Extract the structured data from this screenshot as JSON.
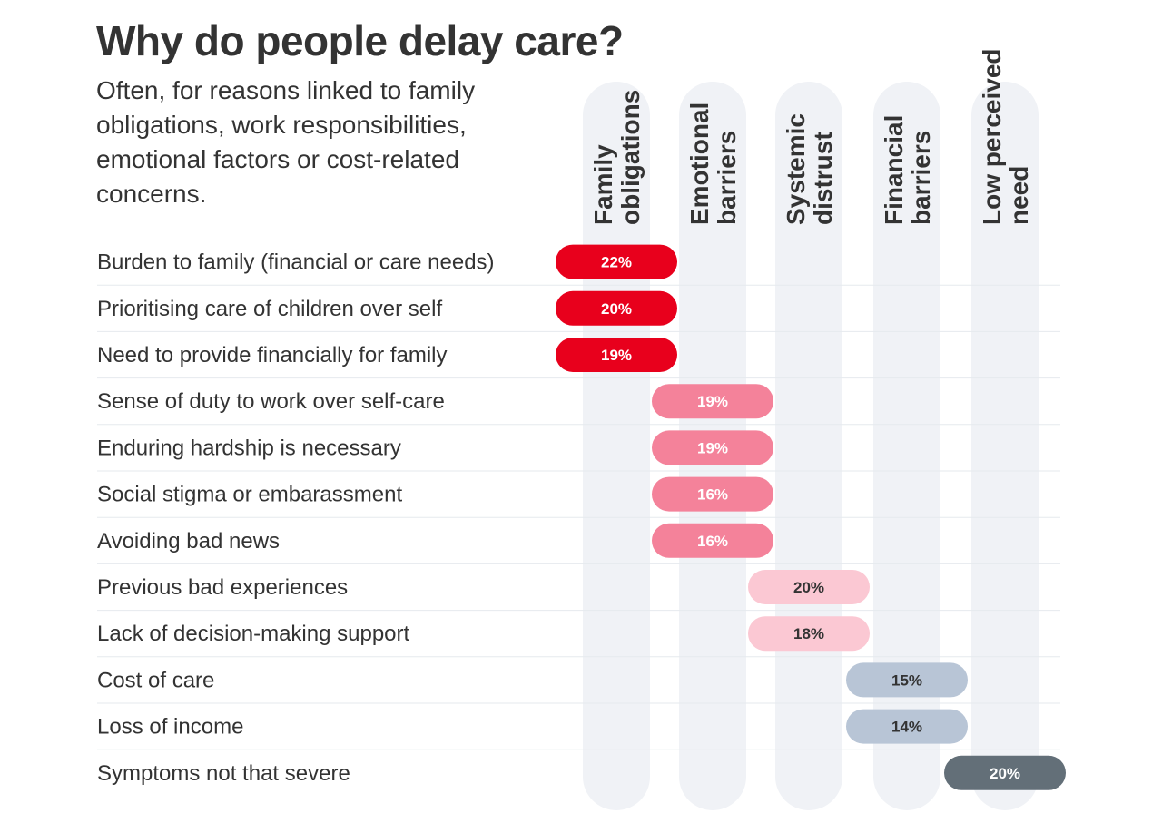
{
  "title": "Why do people delay care?",
  "subtitle": "Often, for reasons linked to family obligations, work responsibilities, emotional factors or cost-related concerns.",
  "chart_data": {
    "type": "table",
    "title": "Why do people delay care?",
    "columns": [
      {
        "lines": [
          "Family",
          "obligations"
        ],
        "color": "#e8001c",
        "text_color": "#ffffff"
      },
      {
        "lines": [
          "Emotional",
          "barriers"
        ],
        "color": "#f4829a",
        "text_color": "#ffffff"
      },
      {
        "lines": [
          "Systemic",
          "distrust"
        ],
        "color": "#fbc8d3",
        "text_color": "#333333"
      },
      {
        "lines": [
          "Financial",
          "barriers"
        ],
        "color": "#b8c5d6",
        "text_color": "#333333"
      },
      {
        "lines": [
          "Low perceived",
          "need"
        ],
        "color": "#636f78",
        "text_color": "#ffffff"
      }
    ],
    "rows": [
      {
        "label": "Burden to family (financial or care needs)",
        "category": 0,
        "value": 22,
        "value_label": "22%"
      },
      {
        "label": "Prioritising care of children over self",
        "category": 0,
        "value": 20,
        "value_label": "20%"
      },
      {
        "label": "Need to provide financially for family",
        "category": 0,
        "value": 19,
        "value_label": "19%"
      },
      {
        "label": "Sense of duty to work over self-care",
        "category": 1,
        "value": 19,
        "value_label": "19%"
      },
      {
        "label": "Enduring hardship is necessary",
        "category": 1,
        "value": 19,
        "value_label": "19%"
      },
      {
        "label": "Social stigma or embarassment",
        "category": 1,
        "value": 16,
        "value_label": "16%"
      },
      {
        "label": "Avoiding bad news",
        "category": 1,
        "value": 16,
        "value_label": "16%"
      },
      {
        "label": "Previous bad experiences",
        "category": 2,
        "value": 20,
        "value_label": "20%"
      },
      {
        "label": "Lack of decision-making support",
        "category": 2,
        "value": 18,
        "value_label": "18%"
      },
      {
        "label": "Cost of care",
        "category": 3,
        "value": 15,
        "value_label": "15%"
      },
      {
        "label": "Loss of income",
        "category": 3,
        "value": 14,
        "value_label": "14%"
      },
      {
        "label": "Symptoms not that severe",
        "category": 4,
        "value": 20,
        "value_label": "20%"
      }
    ]
  }
}
